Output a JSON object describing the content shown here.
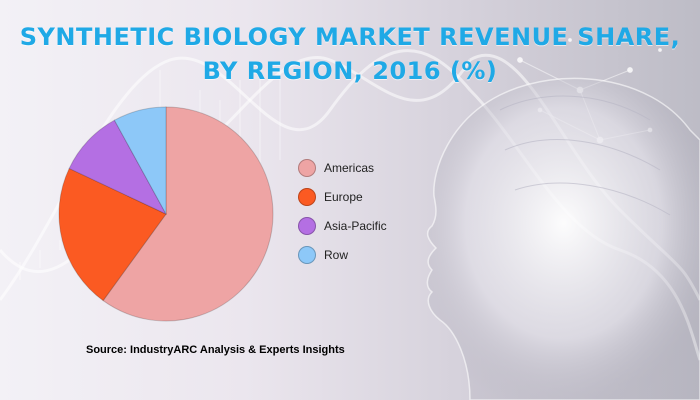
{
  "title_lines": [
    "SYNTHETIC BIOLOGY MARKET REVENUE SHARE,",
    "BY REGION, 2016 (%)"
  ],
  "source": "Source: IndustryARC Analysis & Experts Insights",
  "colors": {
    "Americas": "#eea4a4",
    "Europe": "#fb5a22",
    "Asia-Pacific": "#b46fe3",
    "Row": "#8dc8f8",
    "title": "#1fa9e6"
  },
  "chart_data": {
    "type": "pie",
    "title": "SYNTHETIC BIOLOGY MARKET REVENUE SHARE, BY REGION, 2016 (%)",
    "categories": [
      "Americas",
      "Europe",
      "Asia-Pacific",
      "Row"
    ],
    "values": [
      60,
      22,
      10,
      8
    ],
    "legend_position": "right"
  }
}
